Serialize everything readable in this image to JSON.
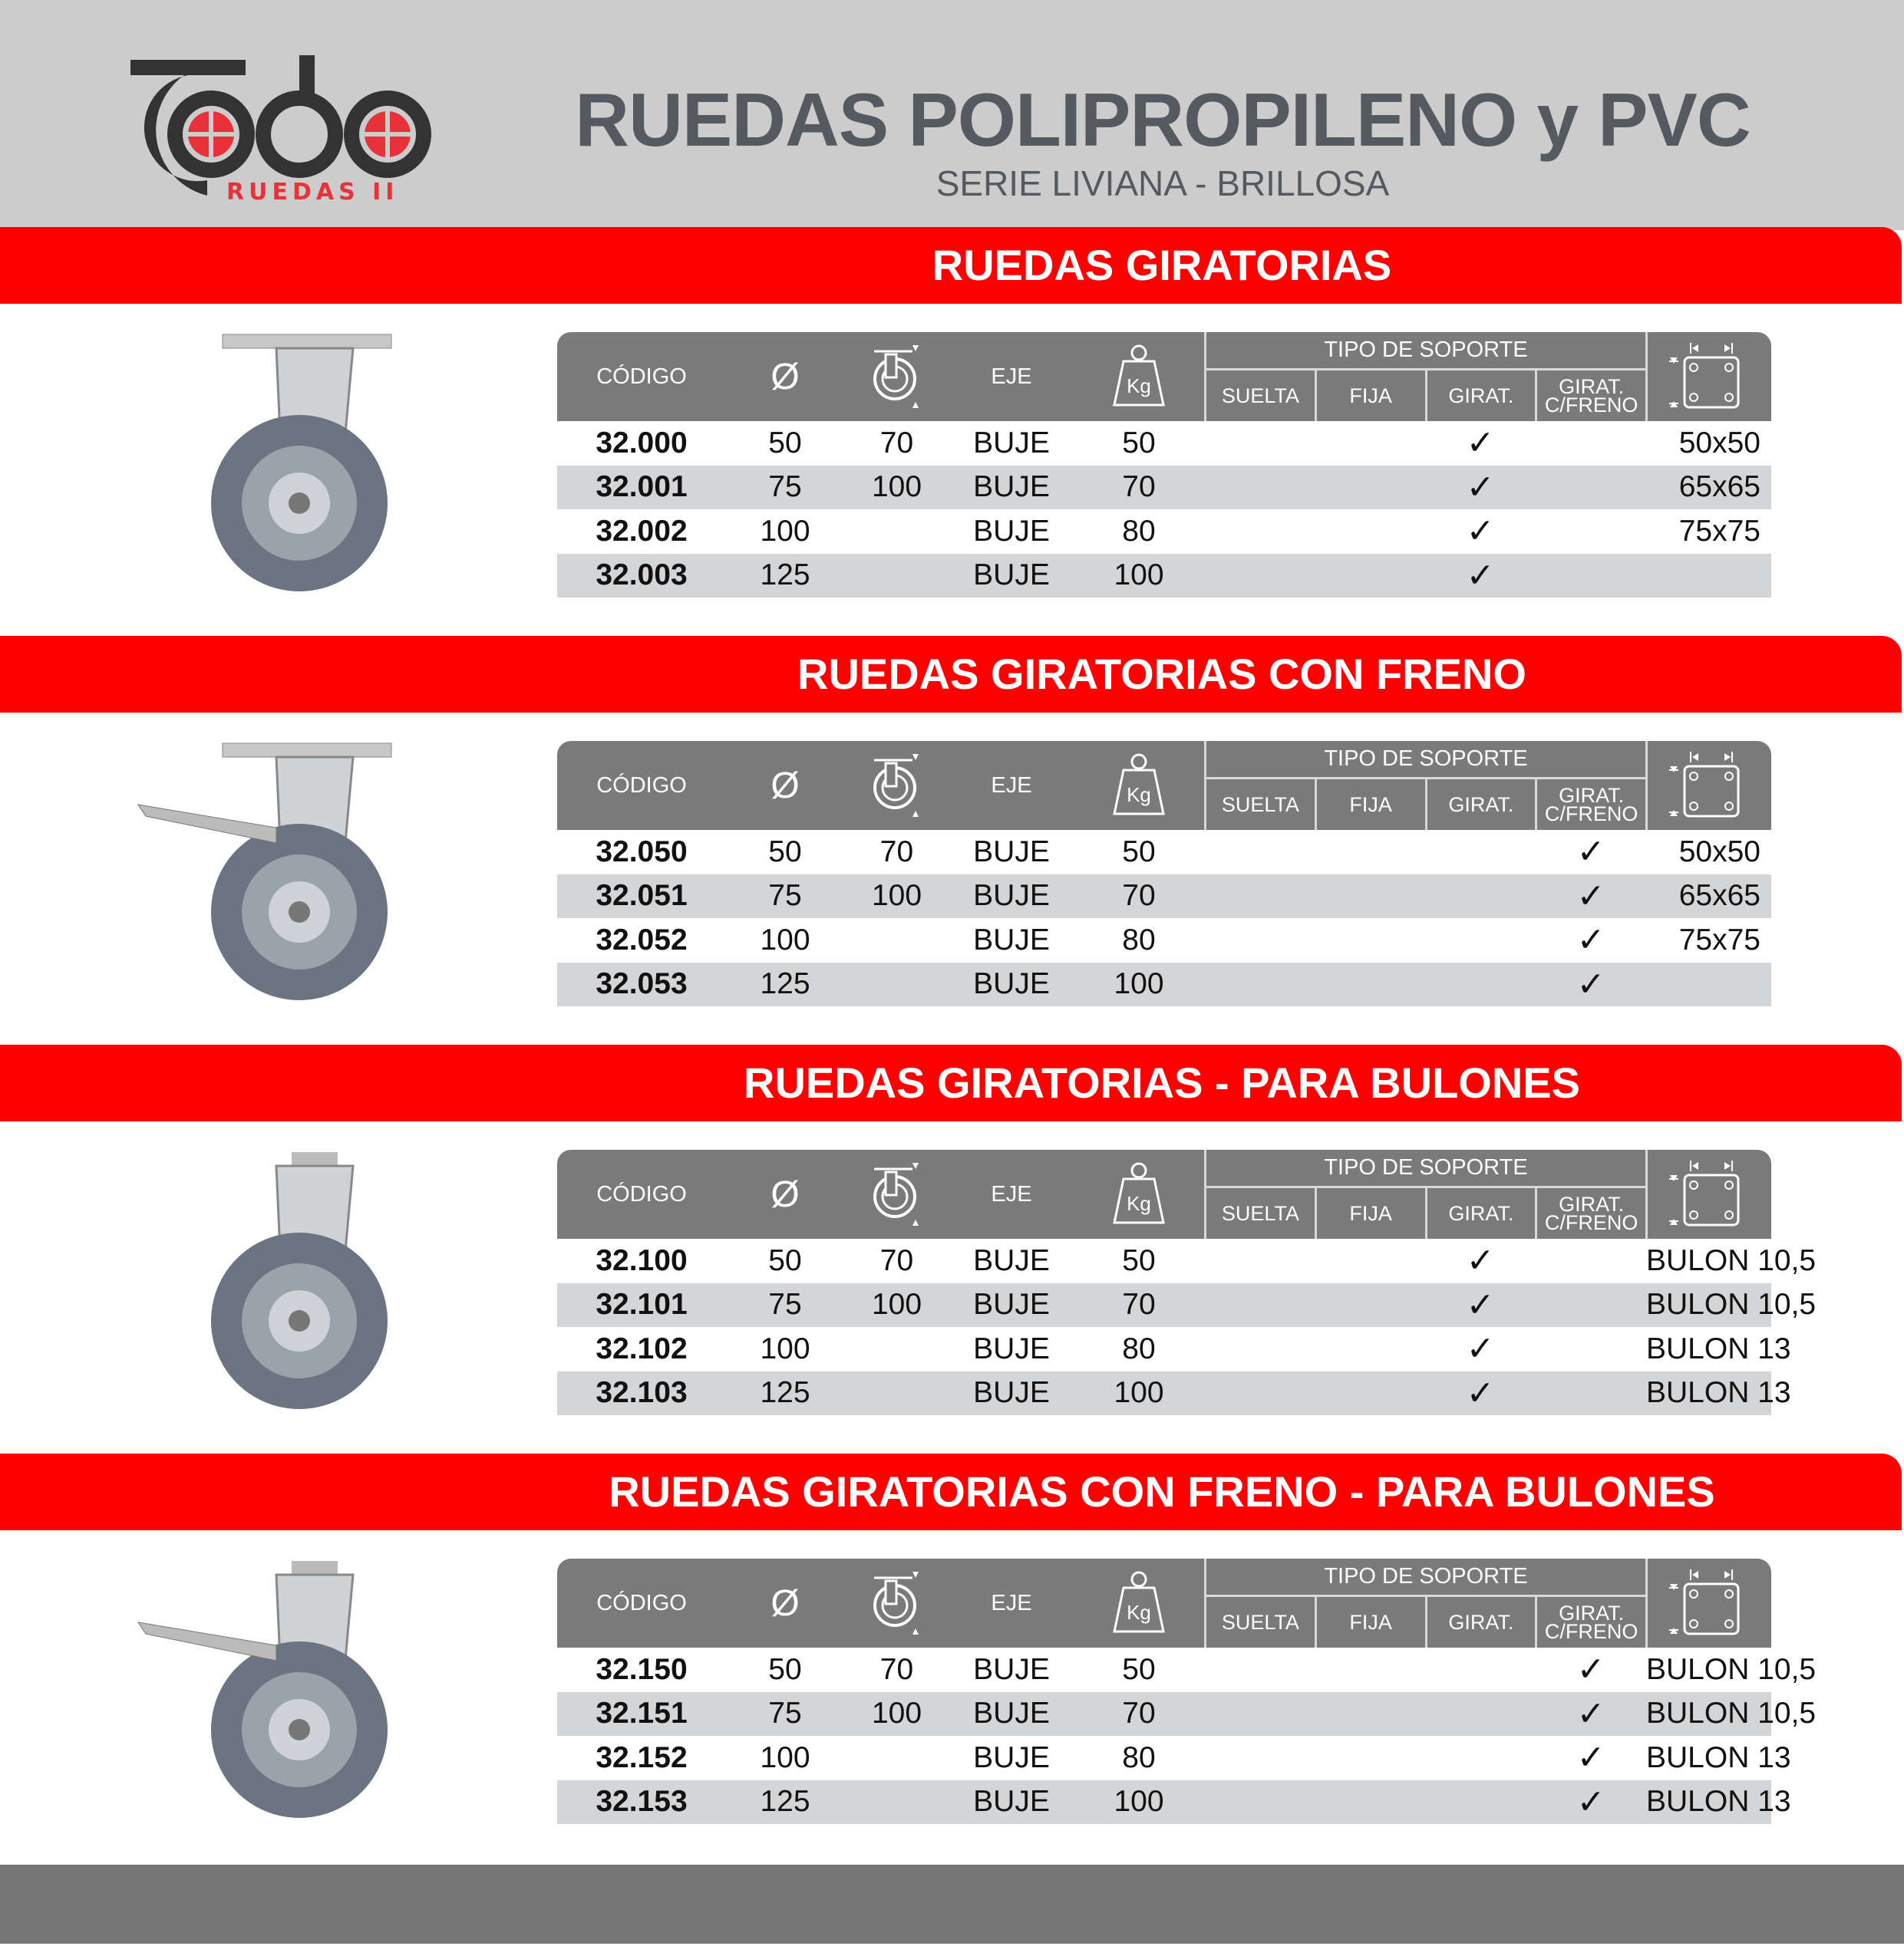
{
  "brand": {
    "logo_text": "Todo",
    "logo_sub": "RUEDAS II",
    "red": "#ff0000",
    "dark": "#333333"
  },
  "header": {
    "title": "RUEDAS POLIPROPILENO y PVC",
    "subtitle": "SERIE LIVIANA - BRILLOSA"
  },
  "table_header": {
    "code": "CÓDIGO",
    "diameter_icon": "diameter-symbol",
    "width_icon": "wheel-width-icon",
    "axle": "EJE",
    "load_icon": "weight-kg-icon",
    "load_label": "Kg",
    "support_type": "TIPO DE SOPORTE",
    "suelta": "SUELTA",
    "fija": "FIJA",
    "girat": "GIRAT.",
    "girat_freno": "GIRAT. C/FRENO",
    "plate_icon": "plate-dimensions-icon"
  },
  "sections": [
    {
      "title": "RUEDAS GIRATORIAS",
      "check_col": "girat",
      "rows": [
        {
          "code": "32.000",
          "diameter": "50",
          "width": "70",
          "axle": "BUJE",
          "load": "50",
          "plate": "50x50"
        },
        {
          "code": "32.001",
          "diameter": "75",
          "width": "100",
          "axle": "BUJE",
          "load": "70",
          "plate": "65x65"
        },
        {
          "code": "32.002",
          "diameter": "100",
          "width": "",
          "axle": "BUJE",
          "load": "80",
          "plate": "75x75"
        },
        {
          "code": "32.003",
          "diameter": "125",
          "width": "",
          "axle": "BUJE",
          "load": "100",
          "plate": ""
        }
      ]
    },
    {
      "title": "RUEDAS GIRATORIAS CON FRENO",
      "check_col": "girat_freno",
      "rows": [
        {
          "code": "32.050",
          "diameter": "50",
          "width": "70",
          "axle": "BUJE",
          "load": "50",
          "plate": "50x50"
        },
        {
          "code": "32.051",
          "diameter": "75",
          "width": "100",
          "axle": "BUJE",
          "load": "70",
          "plate": "65x65"
        },
        {
          "code": "32.052",
          "diameter": "100",
          "width": "",
          "axle": "BUJE",
          "load": "80",
          "plate": "75x75"
        },
        {
          "code": "32.053",
          "diameter": "125",
          "width": "",
          "axle": "BUJE",
          "load": "100",
          "plate": ""
        }
      ]
    },
    {
      "title": "RUEDAS GIRATORIAS - PARA BULONES",
      "check_col": "girat",
      "rows": [
        {
          "code": "32.100",
          "diameter": "50",
          "width": "70",
          "axle": "BUJE",
          "load": "50",
          "plate": "BULON 10,5"
        },
        {
          "code": "32.101",
          "diameter": "75",
          "width": "100",
          "axle": "BUJE",
          "load": "70",
          "plate": "BULON 10,5"
        },
        {
          "code": "32.102",
          "diameter": "100",
          "width": "",
          "axle": "BUJE",
          "load": "80",
          "plate": "BULON 13"
        },
        {
          "code": "32.103",
          "diameter": "125",
          "width": "",
          "axle": "BUJE",
          "load": "100",
          "plate": "BULON 13"
        }
      ]
    },
    {
      "title": "RUEDAS GIRATORIAS CON FRENO - PARA BULONES",
      "check_col": "girat_freno",
      "rows": [
        {
          "code": "32.150",
          "diameter": "50",
          "width": "70",
          "axle": "BUJE",
          "load": "50",
          "plate": "BULON 10,5"
        },
        {
          "code": "32.151",
          "diameter": "75",
          "width": "100",
          "axle": "BUJE",
          "load": "70",
          "plate": "BULON 10,5"
        },
        {
          "code": "32.152",
          "diameter": "100",
          "width": "",
          "axle": "BUJE",
          "load": "80",
          "plate": "BULON 13"
        },
        {
          "code": "32.153",
          "diameter": "125",
          "width": "",
          "axle": "BUJE",
          "load": "100",
          "plate": "BULON 13"
        }
      ]
    }
  ],
  "check_mark": "✓"
}
